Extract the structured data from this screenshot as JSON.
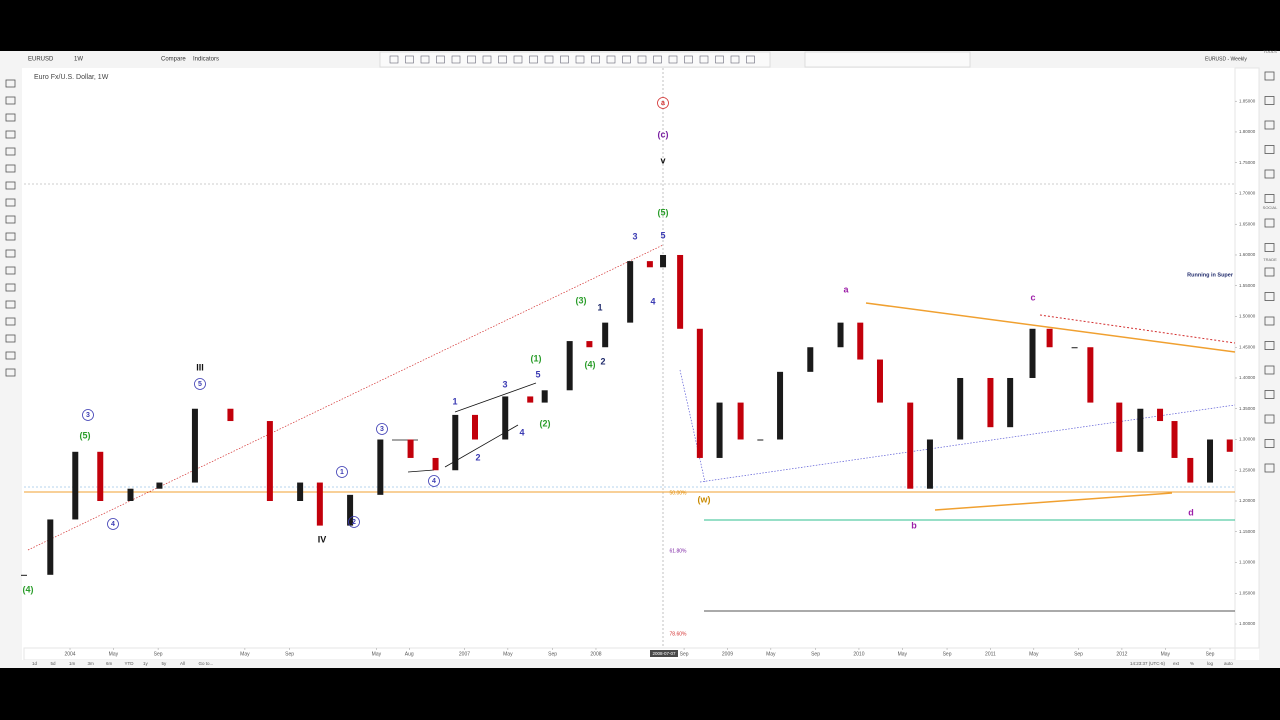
{
  "toolbar": {
    "symbol": "EURUSD",
    "interval": "1W",
    "compare": "Compare",
    "indicators": "Indicators",
    "layout": "EURUSD - Weekly"
  },
  "sidebar": [
    "TOOLS",
    "SOCIAL",
    "TRADE"
  ],
  "chart_data": {
    "type": "candlestick",
    "title": "Euro Fx/U.S. Dollar, 1W",
    "colors": {
      "up": "#1a1a1a",
      "down": "#c2000b"
    },
    "x": [
      2003.65,
      2003.85,
      2004.04,
      2004.23,
      2004.46,
      2004.68,
      2004.95,
      2005.22,
      2005.52,
      2005.75,
      2005.9,
      2006.13,
      2006.36,
      2006.59,
      2006.78,
      2006.93,
      2007.08,
      2007.31,
      2007.5,
      2007.61,
      2007.8,
      2007.95,
      2008.07,
      2008.26,
      2008.41,
      2008.51,
      2008.64,
      2008.79,
      2008.94,
      2009.1,
      2009.25,
      2009.4,
      2009.63,
      2009.86,
      2010.01,
      2010.16,
      2010.39,
      2010.54,
      2010.77,
      2011.0,
      2011.15,
      2011.32,
      2011.45,
      2011.64,
      2011.76,
      2011.98,
      2012.14,
      2012.29,
      2012.4,
      2012.52,
      2012.67,
      2012.82
    ],
    "values": [
      1.08,
      1.17,
      1.28,
      1.2,
      1.22,
      1.23,
      1.35,
      1.33,
      1.2,
      1.23,
      1.16,
      1.21,
      1.3,
      1.27,
      1.25,
      1.34,
      1.3,
      1.37,
      1.36,
      1.38,
      1.46,
      1.45,
      1.49,
      1.59,
      1.58,
      1.6,
      1.48,
      1.27,
      1.36,
      1.3,
      1.3,
      1.41,
      1.45,
      1.49,
      1.43,
      1.36,
      1.22,
      1.3,
      1.4,
      1.32,
      1.4,
      1.48,
      1.45,
      1.45,
      1.36,
      1.28,
      1.35,
      1.33,
      1.27,
      1.23,
      1.3,
      1.28
    ],
    "xlim": [
      2003.65,
      2012.86
    ],
    "ylim": [
      0.961,
      1.904
    ],
    "xticks": [
      2004,
      {
        "value": 2004.33,
        "label": "May"
      },
      {
        "value": 2004.67,
        "label": "Sep"
      },
      {
        "value": 2005.33,
        "label": "May"
      },
      {
        "value": 2005.67,
        "label": "Sep"
      },
      {
        "value": 2006.33,
        "label": "May"
      },
      {
        "value": 2006.58,
        "label": "Aug"
      },
      2007,
      {
        "value": 2007.33,
        "label": "May"
      },
      {
        "value": 2007.67,
        "label": "Sep"
      },
      2008,
      {
        "value": 2008.67,
        "label": "Sep"
      },
      2009,
      {
        "value": 2009.33,
        "label": "May"
      },
      {
        "value": 2009.67,
        "label": "Sep"
      },
      2010,
      {
        "value": 2010.33,
        "label": "May"
      },
      {
        "value": 2010.67,
        "label": "Sep"
      },
      2011,
      {
        "value": 2011.33,
        "label": "May"
      },
      {
        "value": 2011.67,
        "label": "Sep"
      },
      2012,
      {
        "value": 2012.33,
        "label": "May"
      },
      {
        "value": 2012.67,
        "label": "Sep"
      }
    ],
    "yticks": [
      {
        "value": 1.0,
        "label": "1.00000"
      },
      {
        "value": 1.05,
        "label": "1.05000"
      },
      {
        "value": 1.1,
        "label": "1.10000"
      },
      {
        "value": 1.15,
        "label": "1.15000"
      },
      {
        "value": 1.2,
        "label": "1.20000"
      },
      {
        "value": 1.25,
        "label": "1.25000"
      },
      {
        "value": 1.3,
        "label": "1.30000"
      },
      {
        "value": 1.35,
        "label": "1.35000"
      },
      {
        "value": 1.4,
        "label": "1.40000"
      },
      {
        "value": 1.45,
        "label": "1.45000"
      },
      {
        "value": 1.5,
        "label": "1.50000"
      },
      {
        "value": 1.55,
        "label": "1.55000"
      },
      {
        "value": 1.6,
        "label": "1.60000"
      },
      {
        "value": 1.65,
        "label": "1.65000"
      },
      {
        "value": 1.7,
        "label": "1.70000"
      },
      {
        "value": 1.75,
        "label": "1.75000"
      },
      {
        "value": 1.8,
        "label": "1.80000"
      },
      {
        "value": 1.85,
        "label": "1.85000"
      }
    ],
    "crosshair_label": "2008-07-07",
    "annotations": [
      {
        "text": "a",
        "color": "#d32f2f",
        "circled": true
      },
      {
        "text": "(c)",
        "color": "#7a1fa2",
        "circled": false
      },
      {
        "text": "v",
        "color": "#111111",
        "circled": false
      },
      {
        "text": "(5)",
        "color": "#2a9d2a",
        "circled": false
      },
      {
        "text": "5",
        "color": "#3b3bb3",
        "circled": false
      },
      {
        "text": "3",
        "color": "#3b3bb3",
        "circled": false
      },
      {
        "text": "4",
        "color": "#3b3bb3",
        "circled": false
      },
      {
        "text": "1",
        "color": "#1f2a6b",
        "circled": false
      },
      {
        "text": "2",
        "color": "#1f2a6b",
        "circled": false
      },
      {
        "text": "(3)",
        "color": "#2a9d2a",
        "circled": false
      },
      {
        "text": "(4)",
        "color": "#2a9d2a",
        "circled": false
      },
      {
        "text": "(1)",
        "color": "#2a9d2a",
        "circled": false
      },
      {
        "text": "(2)",
        "color": "#2a9d2a",
        "circled": false
      },
      {
        "text": "5",
        "color": "#3b3bb3",
        "circled": false
      },
      {
        "text": "3",
        "color": "#3b3bb3",
        "circled": false
      },
      {
        "text": "1",
        "color": "#3b3bb3",
        "circled": false
      },
      {
        "text": "2",
        "color": "#3b3bb3",
        "circled": false
      },
      {
        "text": "4",
        "color": "#3b3bb3",
        "circled": false
      },
      {
        "text": "3",
        "color": "#3b3bb3",
        "circled": true
      },
      {
        "text": "4",
        "color": "#3b3bb3",
        "circled": true
      },
      {
        "text": "1",
        "color": "#3b3bb3",
        "circled": true
      },
      {
        "text": "2",
        "color": "#3b3bb3",
        "circled": true
      },
      {
        "text": "IV",
        "color": "#111111",
        "circled": false
      },
      {
        "text": "III",
        "color": "#111111",
        "circled": false
      },
      {
        "text": "5",
        "color": "#3b3bb3",
        "circled": true
      },
      {
        "text": "3",
        "color": "#3b3bb3",
        "circled": true
      },
      {
        "text": "(5)",
        "color": "#2a9d2a",
        "circled": false
      },
      {
        "text": "4",
        "color": "#3b3bb3",
        "circled": true
      },
      {
        "text": "(4)",
        "color": "#2a9d2a",
        "circled": false
      },
      {
        "text": "(w)",
        "color": "#c98a00",
        "circled": false
      },
      {
        "text": "a",
        "color": "#9c1fa8",
        "circled": false
      },
      {
        "text": "b",
        "color": "#9c1fa8",
        "circled": false
      },
      {
        "text": "c",
        "color": "#9c1fa8",
        "circled": false
      },
      {
        "text": "d",
        "color": "#9c1fa8",
        "circled": false
      }
    ],
    "fib_levels": [
      {
        "label": "50.00%",
        "color": "#e08a00"
      },
      {
        "label": "61.80%",
        "color": "#7a1fa2"
      },
      {
        "label": "78.60%",
        "color": "#d32f2f"
      }
    ],
    "note": "Running in Super"
  },
  "bottom_bar": {
    "ranges": [
      "1d",
      "5d",
      "1m",
      "3m",
      "6m",
      "YTD",
      "1y",
      "5y",
      "All",
      "Go to..."
    ],
    "time": "14:23:37 (UTC-5)",
    "options": [
      "ext",
      "%",
      "log",
      "auto"
    ]
  }
}
